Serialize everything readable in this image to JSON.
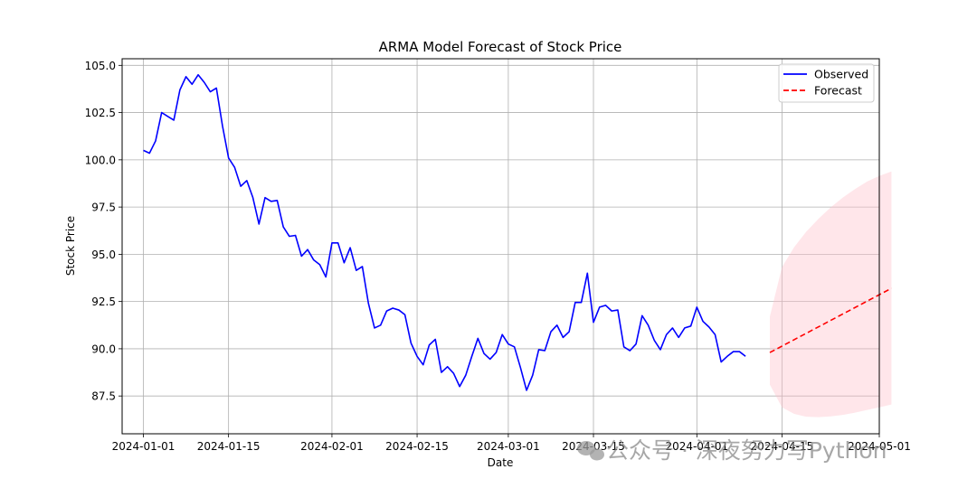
{
  "chart_data": {
    "type": "line",
    "title": "ARMA Model Forecast of Stock Price",
    "xlabel": "Date",
    "ylabel": "Stock Price",
    "x_start": "2024-01-01",
    "x_range_days": [
      -3.5,
      121
    ],
    "ylim": [
      85.5,
      105.35
    ],
    "grid": true,
    "legend_position": "top-right",
    "x_ticks": [
      {
        "day": 0,
        "label": "2024-01-01"
      },
      {
        "day": 14,
        "label": "2024-01-15"
      },
      {
        "day": 31,
        "label": "2024-02-01"
      },
      {
        "day": 45,
        "label": "2024-02-15"
      },
      {
        "day": 60,
        "label": "2024-03-01"
      },
      {
        "day": 74,
        "label": "2024-03-15"
      },
      {
        "day": 91,
        "label": "2024-04-01"
      },
      {
        "day": 105,
        "label": "2024-04-15"
      },
      {
        "day": 121,
        "label": "2024-05-01"
      }
    ],
    "y_ticks": [
      {
        "value": 87.5,
        "label": "87.5"
      },
      {
        "value": 90.0,
        "label": "90.0"
      },
      {
        "value": 92.5,
        "label": "92.5"
      },
      {
        "value": 95.0,
        "label": "95.0"
      },
      {
        "value": 97.5,
        "label": "97.5"
      },
      {
        "value": 100.0,
        "label": "100.0"
      },
      {
        "value": 102.5,
        "label": "102.5"
      },
      {
        "value": 105.0,
        "label": "105.0"
      }
    ],
    "series": [
      {
        "name": "Observed",
        "color": "#0000ff",
        "style": "solid",
        "start_day": 0,
        "values": [
          100.5,
          100.35,
          101.0,
          102.5,
          102.3,
          102.1,
          103.7,
          104.4,
          104.0,
          104.5,
          104.1,
          103.6,
          103.8,
          101.8,
          100.1,
          99.6,
          98.6,
          98.9,
          98.0,
          96.6,
          98.0,
          97.8,
          97.85,
          96.45,
          95.95,
          96.0,
          94.9,
          95.25,
          94.7,
          94.45,
          93.8,
          95.6,
          95.6,
          94.55,
          95.35,
          94.15,
          94.35,
          92.4,
          91.1,
          91.25,
          92.0,
          92.15,
          92.05,
          91.8,
          90.3,
          89.6,
          89.15,
          90.2,
          90.5,
          88.75,
          89.05,
          88.7,
          88.0,
          88.6,
          89.6,
          90.55,
          89.75,
          89.45,
          89.8,
          90.75,
          90.25,
          90.1,
          89.0,
          87.8,
          88.6,
          89.95,
          89.9,
          90.9,
          91.25,
          90.6,
          90.9,
          92.45,
          92.45,
          94.0,
          91.4,
          92.2,
          92.3,
          92.0,
          92.05,
          90.1,
          89.9,
          90.25,
          91.75,
          91.25,
          90.45,
          89.95,
          90.75,
          91.1,
          90.6,
          91.1,
          91.2,
          92.2,
          91.45,
          91.15,
          90.75,
          89.3,
          89.6,
          89.85,
          89.85,
          89.6
        ]
      },
      {
        "name": "Forecast",
        "color": "#ff0000",
        "style": "dashed",
        "start_day": 103,
        "end_day": 123,
        "values": [
          89.8,
          93.2
        ]
      }
    ],
    "confidence_interval": {
      "color": "#ffc0cb",
      "opacity": 0.4,
      "start_day": 103,
      "end_day": 123,
      "upper": [
        91.7,
        94.32,
        95.38,
        96.2,
        96.88,
        97.48,
        98.0,
        98.45,
        98.85,
        99.15,
        99.38
      ],
      "lower": [
        88.1,
        86.9,
        86.55,
        86.4,
        86.38,
        86.42,
        86.5,
        86.62,
        86.76,
        86.9,
        87.05
      ]
    }
  },
  "watermark": {
    "text": "公众号 · 深夜努力写Python"
  }
}
